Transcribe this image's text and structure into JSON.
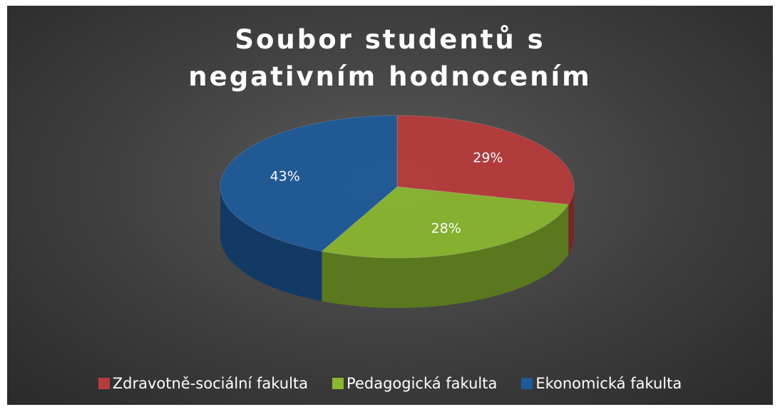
{
  "chart_data": {
    "type": "pie",
    "title": "Soubor studentů s negativním hodnocením",
    "categories": [
      "Zdravotně-sociální fakulta",
      "Pedagogická fakulta",
      "Ekonomická fakulta"
    ],
    "values": [
      29,
      28,
      43
    ],
    "value_labels": [
      "29%",
      "28%",
      "43%"
    ],
    "colors": [
      "#b83b3b",
      "#8ab82e",
      "#1c5a9a"
    ],
    "legend": "bottom"
  }
}
